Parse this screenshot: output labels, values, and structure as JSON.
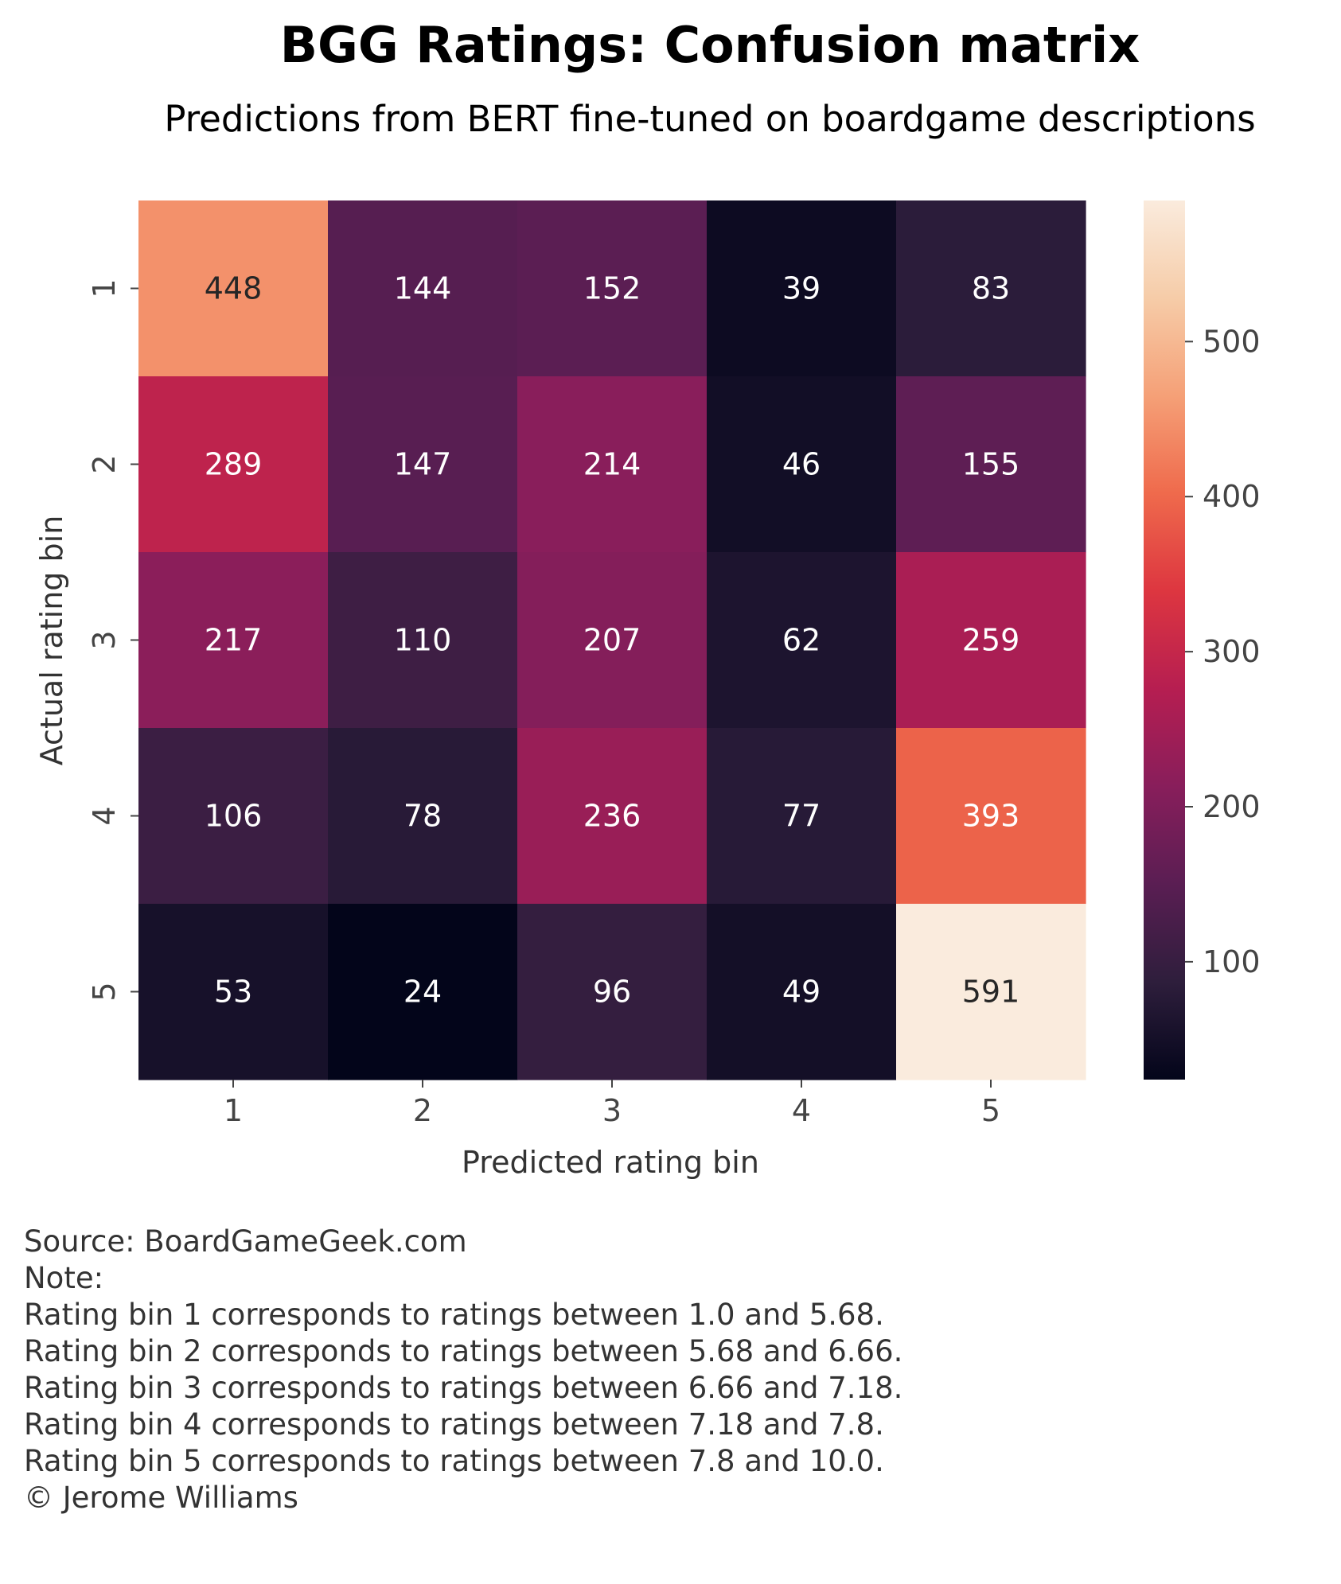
{
  "chart_data": {
    "type": "heatmap",
    "title": "BGG Ratings: Confusion matrix",
    "subtitle": "Predictions from BERT fine-tuned on boardgame descriptions",
    "xlabel": "Predicted rating bin",
    "ylabel": "Actual rating bin",
    "x_categories": [
      "1",
      "2",
      "3",
      "4",
      "5"
    ],
    "y_categories": [
      "1",
      "2",
      "3",
      "4",
      "5"
    ],
    "values": [
      [
        448,
        144,
        152,
        39,
        83
      ],
      [
        289,
        147,
        214,
        46,
        155
      ],
      [
        217,
        110,
        207,
        62,
        259
      ],
      [
        106,
        78,
        236,
        77,
        393
      ],
      [
        53,
        24,
        96,
        49,
        591
      ]
    ],
    "colorbar": {
      "vmin": 24,
      "vmax": 591,
      "ticks": [
        100,
        200,
        300,
        400,
        500
      ],
      "tick_labels": [
        "100",
        "200",
        "300",
        "400",
        "500"
      ],
      "colormap": "rocket",
      "stops": [
        "#03051a",
        "#2e1e3c",
        "#5a1e53",
        "#881e5b",
        "#b61e51",
        "#dd3640",
        "#ef6a4c",
        "#f5a077",
        "#f6cca8",
        "#faebdd"
      ]
    },
    "annotation_text_color": "#ffffff",
    "annotation_text_color_light_cells": "#262626"
  },
  "footer": {
    "source": "Source: BoardGameGeek.com",
    "note_label": "Note:",
    "notes": [
      "Rating bin 1 corresponds to ratings between 1.0 and 5.68.",
      "Rating bin 2 corresponds to ratings between 5.68 and 6.66.",
      "Rating bin 3 corresponds to ratings between 6.66 and 7.18.",
      "Rating bin 4 corresponds to ratings between 7.18 and 7.8.",
      "Rating bin 5 corresponds to ratings between 7.8 and 10.0."
    ],
    "copyright": "© Jerome Williams"
  }
}
